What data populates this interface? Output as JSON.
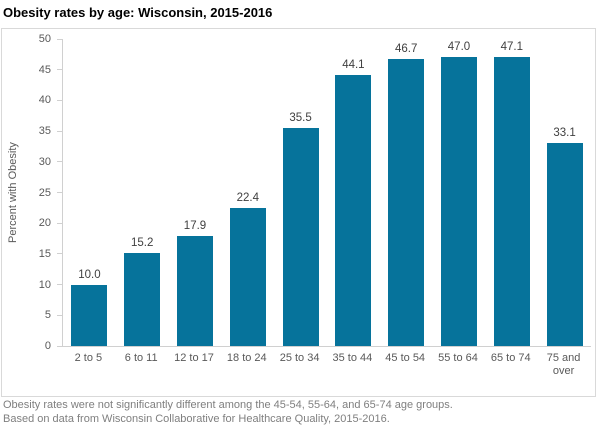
{
  "chart_data": {
    "type": "bar",
    "title": "Obesity rates by age: Wisconsin, 2015-2016",
    "categories": [
      "2 to 5",
      "6 to 11",
      "12 to 17",
      "18 to 24",
      "25 to 34",
      "35 to 44",
      "45 to 54",
      "55 to 64",
      "65 to 74",
      "75 and over"
    ],
    "values": [
      10.0,
      15.2,
      17.9,
      22.4,
      35.5,
      44.1,
      46.7,
      47.0,
      47.1,
      33.1
    ],
    "value_labels": [
      "10.0",
      "15.2",
      "17.9",
      "22.4",
      "35.5",
      "44.1",
      "46.7",
      "47.0",
      "47.1",
      "33.1"
    ],
    "xlabel": "",
    "ylabel": "Percent with Obesity",
    "ylim": [
      0,
      50
    ],
    "yticks": [
      0,
      5,
      10,
      15,
      20,
      25,
      30,
      35,
      40,
      45,
      50
    ],
    "grid": false,
    "legend": "none",
    "data_labels": true,
    "bar_color": "#06739B"
  },
  "footnotes": [
    "Obesity rates were not significantly different among the 45-54, 55-64, and 65-74 age groups.",
    "Based on data from Wisconsin Collaborative for Healthcare Quality, 2015-2016."
  ],
  "colors": {
    "bar": "#06739B",
    "chart_border": "#D9D9D9",
    "axis_line": "#D0D0D0",
    "tick_label": "#595959",
    "value_label": "#404040",
    "footnote": "#7F7F7F",
    "title": "#000000"
  }
}
